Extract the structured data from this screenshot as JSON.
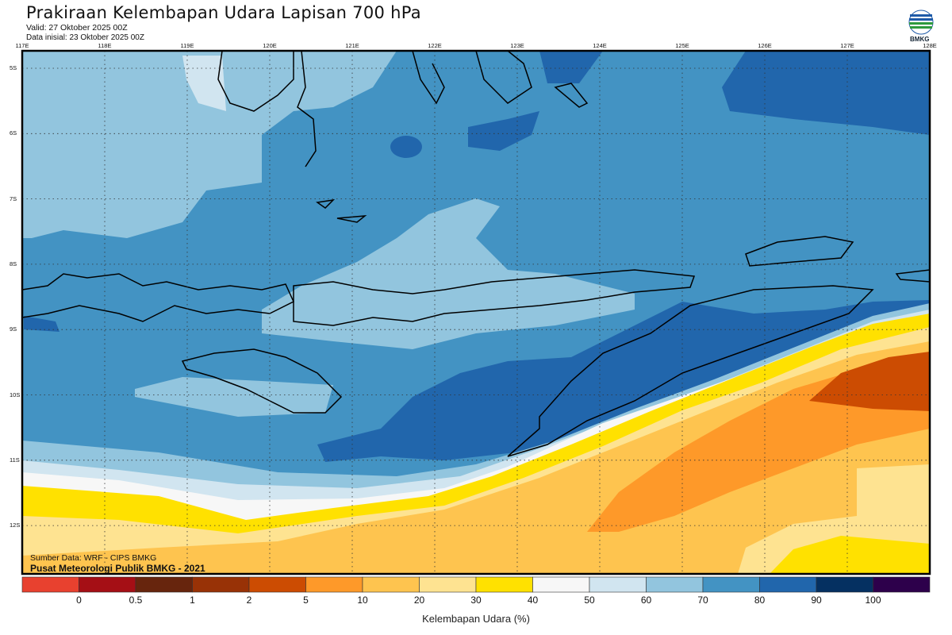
{
  "header": {
    "title": "Prakiraan Kelembapan Udara Lapisan 700 hPa",
    "valid": "Valid: 27 Oktober 2025 00Z",
    "initial": "Data inisial: 23 Oktober 2025 00Z",
    "logo_text": "BMKG"
  },
  "map": {
    "lon_labels": [
      "117E",
      "118E",
      "119E",
      "120E",
      "121E",
      "122E",
      "123E",
      "124E",
      "125E",
      "126E",
      "127E",
      "128E"
    ],
    "lat_labels": [
      "5S",
      "6S",
      "7S",
      "8S",
      "9S",
      "10S",
      "11S",
      "12S"
    ],
    "source": "Sumber Data: WRF - CIPS BMKG",
    "credit": "Pusat Meteorologi Publik BMKG - 2021"
  },
  "colorbar": {
    "colors": [
      "#e8412f",
      "#a50f15",
      "#67250d",
      "#983206",
      "#cc4c02",
      "#fe9929",
      "#fec44f",
      "#fee391",
      "#ffe100",
      "#f7f7f7",
      "#d1e5f0",
      "#92c5de",
      "#4393c3",
      "#2166ac",
      "#053061",
      "#2d004b"
    ],
    "labels": [
      "0",
      "0.5",
      "1",
      "2",
      "5",
      "10",
      "20",
      "30",
      "40",
      "50",
      "60",
      "70",
      "80",
      "90",
      "100"
    ],
    "title": "Kelembapan Udara (%)"
  }
}
